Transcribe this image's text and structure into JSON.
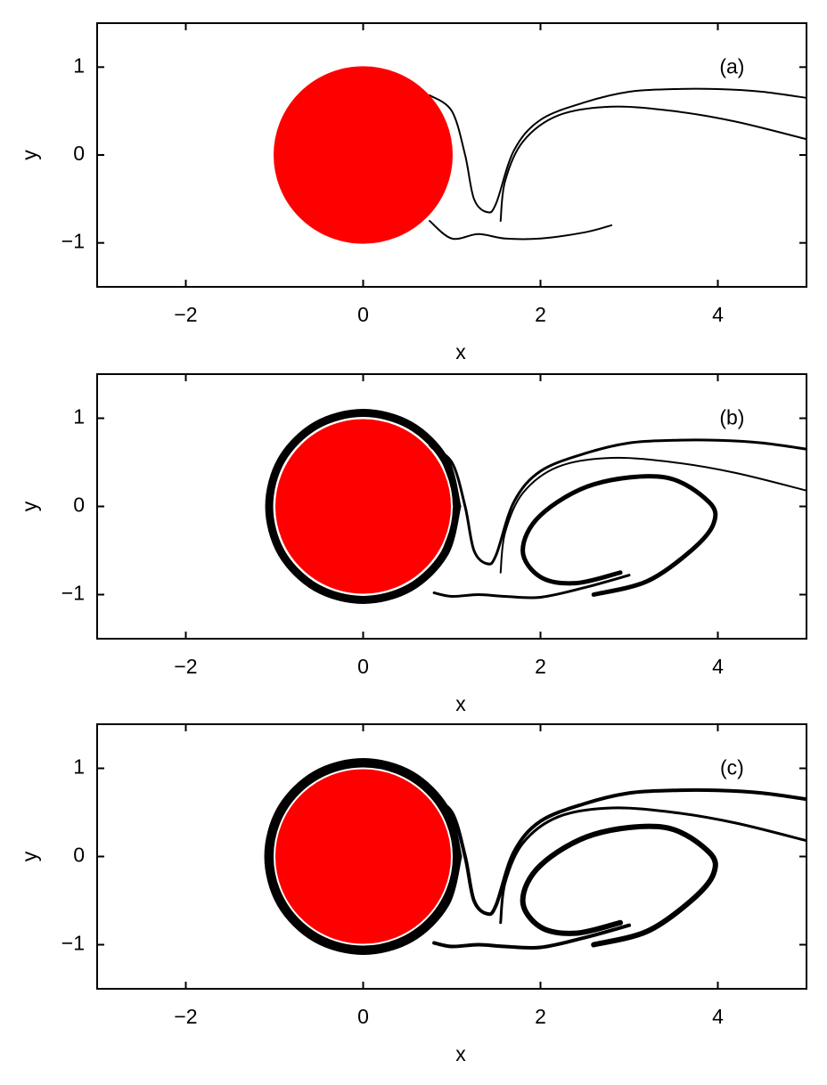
{
  "chart_data": [
    {
      "type": "line",
      "label": "(a)",
      "x_label": "x",
      "y_label": "y",
      "xlim": [
        -3,
        5
      ],
      "ylim": [
        -1.5,
        1.5
      ],
      "xticks": [
        {
          "value": -2,
          "label": "−2"
        },
        0,
        2,
        4
      ],
      "yticks": [
        {
          "value": -1,
          "label": "−1"
        },
        0,
        1
      ],
      "obstacle": {
        "x": 0,
        "y": 0,
        "r": 1,
        "color": "#ff0000"
      },
      "series": [
        {
          "color": "#000000",
          "line_width": 2,
          "x": [
            0.75,
            1.0,
            1.15,
            1.25,
            1.4,
            1.5,
            1.7,
            2.0,
            2.5,
            3.0,
            3.5,
            4.0,
            4.5,
            5.0
          ],
          "values": [
            0.68,
            0.5,
            0.0,
            -0.5,
            -0.65,
            -0.55,
            0.05,
            0.4,
            0.6,
            0.72,
            0.75,
            0.75,
            0.72,
            0.65
          ]
        },
        {
          "color": "#000000",
          "line_width": 2,
          "x": [
            1.55,
            1.6,
            1.8,
            2.2,
            2.8,
            3.5,
            4.2,
            5.0
          ],
          "values": [
            -0.75,
            -0.3,
            0.15,
            0.45,
            0.55,
            0.5,
            0.38,
            0.18
          ]
        },
        {
          "color": "#000000",
          "line_width": 2,
          "x": [
            0.75,
            1.0,
            1.3,
            1.6,
            2.0,
            2.5,
            2.8
          ],
          "values": [
            -0.75,
            -0.95,
            -0.9,
            -0.95,
            -0.95,
            -0.88,
            -0.8
          ]
        }
      ]
    },
    {
      "type": "line",
      "label": "(b)",
      "x_label": "x",
      "y_label": "y",
      "xlim": [
        -3,
        5
      ],
      "ylim": [
        -1.5,
        1.5
      ],
      "xticks": [
        {
          "value": -2,
          "label": "−2"
        },
        0,
        2,
        4
      ],
      "yticks": [
        {
          "value": -1,
          "label": "−1"
        },
        0,
        1
      ],
      "obstacle": {
        "x": 0,
        "y": 0,
        "r": 1,
        "color": "#ff0000"
      },
      "series": [
        {
          "color": "#000000",
          "line_width": 9,
          "x": [
            1.06,
            0.92,
            0.53,
            0,
            -0.53,
            -0.92,
            -1.06,
            -0.92,
            -0.53,
            0,
            0.53,
            0.92,
            1.06
          ],
          "values": [
            0,
            0.53,
            0.92,
            1.06,
            0.92,
            0.53,
            0,
            -0.53,
            -0.92,
            -1.06,
            -0.92,
            -0.53,
            0
          ]
        },
        {
          "color": "#000000",
          "line_width": 3,
          "x": [
            0.75,
            1.0,
            1.15,
            1.25,
            1.4,
            1.5,
            1.7,
            2.0,
            2.5,
            3.0,
            3.5,
            4.0,
            4.5,
            5.0
          ],
          "values": [
            0.68,
            0.5,
            0.0,
            -0.5,
            -0.65,
            -0.55,
            0.05,
            0.4,
            0.6,
            0.72,
            0.75,
            0.75,
            0.72,
            0.65
          ]
        },
        {
          "color": "#000000",
          "line_width": 2,
          "x": [
            1.55,
            1.6,
            1.8,
            2.2,
            2.8,
            3.5,
            4.2,
            5.0
          ],
          "values": [
            -0.75,
            -0.3,
            0.15,
            0.45,
            0.55,
            0.5,
            0.38,
            0.18
          ]
        },
        {
          "color": "#000000",
          "line_width": 3,
          "x": [
            0.8,
            1.0,
            1.3,
            1.6,
            2.0,
            2.5,
            3.0
          ],
          "values": [
            -0.98,
            -1.02,
            -1.0,
            -1.02,
            -1.03,
            -0.92,
            -0.78
          ]
        },
        {
          "color": "#000000",
          "line_width": 5,
          "x": [
            2.9,
            2.4,
            2.0,
            1.8,
            2.0,
            2.6,
            3.4,
            3.9,
            3.95,
            3.7,
            3.2,
            2.6
          ],
          "values": [
            -0.75,
            -0.87,
            -0.8,
            -0.5,
            -0.1,
            0.25,
            0.33,
            0.05,
            -0.2,
            -0.5,
            -0.85,
            -1.0
          ]
        }
      ]
    },
    {
      "type": "line",
      "label": "(c)",
      "x_label": "x",
      "y_label": "y",
      "xlim": [
        -3,
        5
      ],
      "ylim": [
        -1.5,
        1.5
      ],
      "xticks": [
        {
          "value": -2,
          "label": "−2"
        },
        0,
        2,
        4
      ],
      "yticks": [
        {
          "value": -1,
          "label": "−1"
        },
        0,
        1
      ],
      "obstacle": {
        "x": 0,
        "y": 0,
        "r": 1,
        "color": "#ff0000"
      },
      "series": [
        {
          "color": "#000000",
          "line_width": 11,
          "x": [
            1.06,
            0.92,
            0.53,
            0,
            -0.53,
            -0.92,
            -1.06,
            -0.92,
            -0.53,
            0,
            0.53,
            0.92,
            1.06
          ],
          "values": [
            0,
            0.53,
            0.92,
            1.06,
            0.92,
            0.53,
            0,
            -0.53,
            -0.92,
            -1.06,
            -0.92,
            -0.53,
            0
          ]
        },
        {
          "color": "#000000",
          "line_width": 4,
          "x": [
            0.75,
            1.0,
            1.15,
            1.25,
            1.4,
            1.5,
            1.7,
            2.0,
            2.5,
            3.0,
            3.5,
            4.0,
            4.5,
            5.0
          ],
          "values": [
            0.68,
            0.5,
            0.0,
            -0.5,
            -0.65,
            -0.55,
            0.05,
            0.4,
            0.6,
            0.72,
            0.75,
            0.75,
            0.72,
            0.65
          ]
        },
        {
          "color": "#000000",
          "line_width": 3,
          "x": [
            1.55,
            1.6,
            1.8,
            2.2,
            2.8,
            3.5,
            4.2,
            5.0
          ],
          "values": [
            -0.75,
            -0.3,
            0.15,
            0.45,
            0.55,
            0.5,
            0.38,
            0.18
          ]
        },
        {
          "color": "#000000",
          "line_width": 4,
          "x": [
            0.8,
            1.0,
            1.3,
            1.6,
            2.0,
            2.5,
            3.0
          ],
          "values": [
            -0.98,
            -1.02,
            -1.0,
            -1.02,
            -1.03,
            -0.92,
            -0.78
          ]
        },
        {
          "color": "#000000",
          "line_width": 6,
          "x": [
            2.9,
            2.4,
            2.0,
            1.8,
            2.0,
            2.6,
            3.4,
            3.9,
            3.95,
            3.7,
            3.2,
            2.6
          ],
          "values": [
            -0.75,
            -0.87,
            -0.8,
            -0.5,
            -0.1,
            0.25,
            0.33,
            0.05,
            -0.2,
            -0.5,
            -0.85,
            -1.0
          ]
        }
      ]
    }
  ]
}
